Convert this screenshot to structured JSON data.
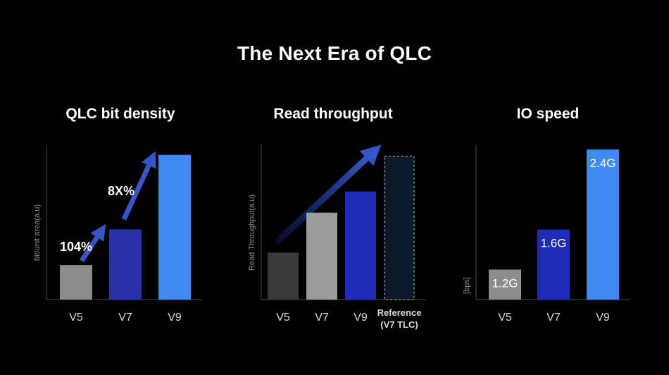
{
  "title": "The Next Era of QLC",
  "colors": {
    "background": "#000000",
    "gray": "#8c8c8c",
    "dark_gray": "#3a3a3c",
    "light_gray": "#9b9b9b",
    "navy": "#2a32a8",
    "dark_blue": "#1f2bb5",
    "blue": "#3e8af0",
    "arrow": "#3555c8",
    "reference_fill": "#0d1a2e"
  },
  "chart_data": [
    {
      "type": "bar",
      "title": "QLC bit density",
      "ylabel": "bit/unit area(a.u)",
      "categories": [
        "V5",
        "V7",
        "V9"
      ],
      "values": [
        1.0,
        2.04,
        4.2
      ],
      "ylim": [
        0,
        4.5
      ],
      "bar_colors": [
        "#8c8c8c",
        "#2a32a8",
        "#3e8af0"
      ],
      "annotations": [
        "104%",
        "8X%"
      ],
      "grid": false,
      "legend": "none"
    },
    {
      "type": "bar",
      "title": "Read throughput",
      "ylabel": "Read Throughput(a.u)",
      "categories": [
        "V5",
        "V7",
        "V9",
        "Reference"
      ],
      "category_sublabels": [
        "",
        "",
        "",
        "(V7 TLC)"
      ],
      "values": [
        1.0,
        1.85,
        2.3,
        3.05
      ],
      "ylim": [
        0,
        3.3
      ],
      "bar_colors": [
        "#3a3a3c",
        "#9b9b9b",
        "#1f2bb5",
        "#0d1a2e"
      ],
      "reference_index": 3,
      "grid": false,
      "legend": "none"
    },
    {
      "type": "bar",
      "title": "IO speed",
      "ylabel": "[bps]",
      "categories": [
        "V5",
        "V7",
        "V9"
      ],
      "values": [
        1.2,
        1.6,
        2.4
      ],
      "data_labels": [
        "1.2G",
        "1.6G",
        "2.4G"
      ],
      "ylim": [
        0.9,
        2.45
      ],
      "bar_colors": [
        "#8c8c8c",
        "#1f2bb5",
        "#3e8af0"
      ],
      "grid": false,
      "legend": "none"
    }
  ]
}
